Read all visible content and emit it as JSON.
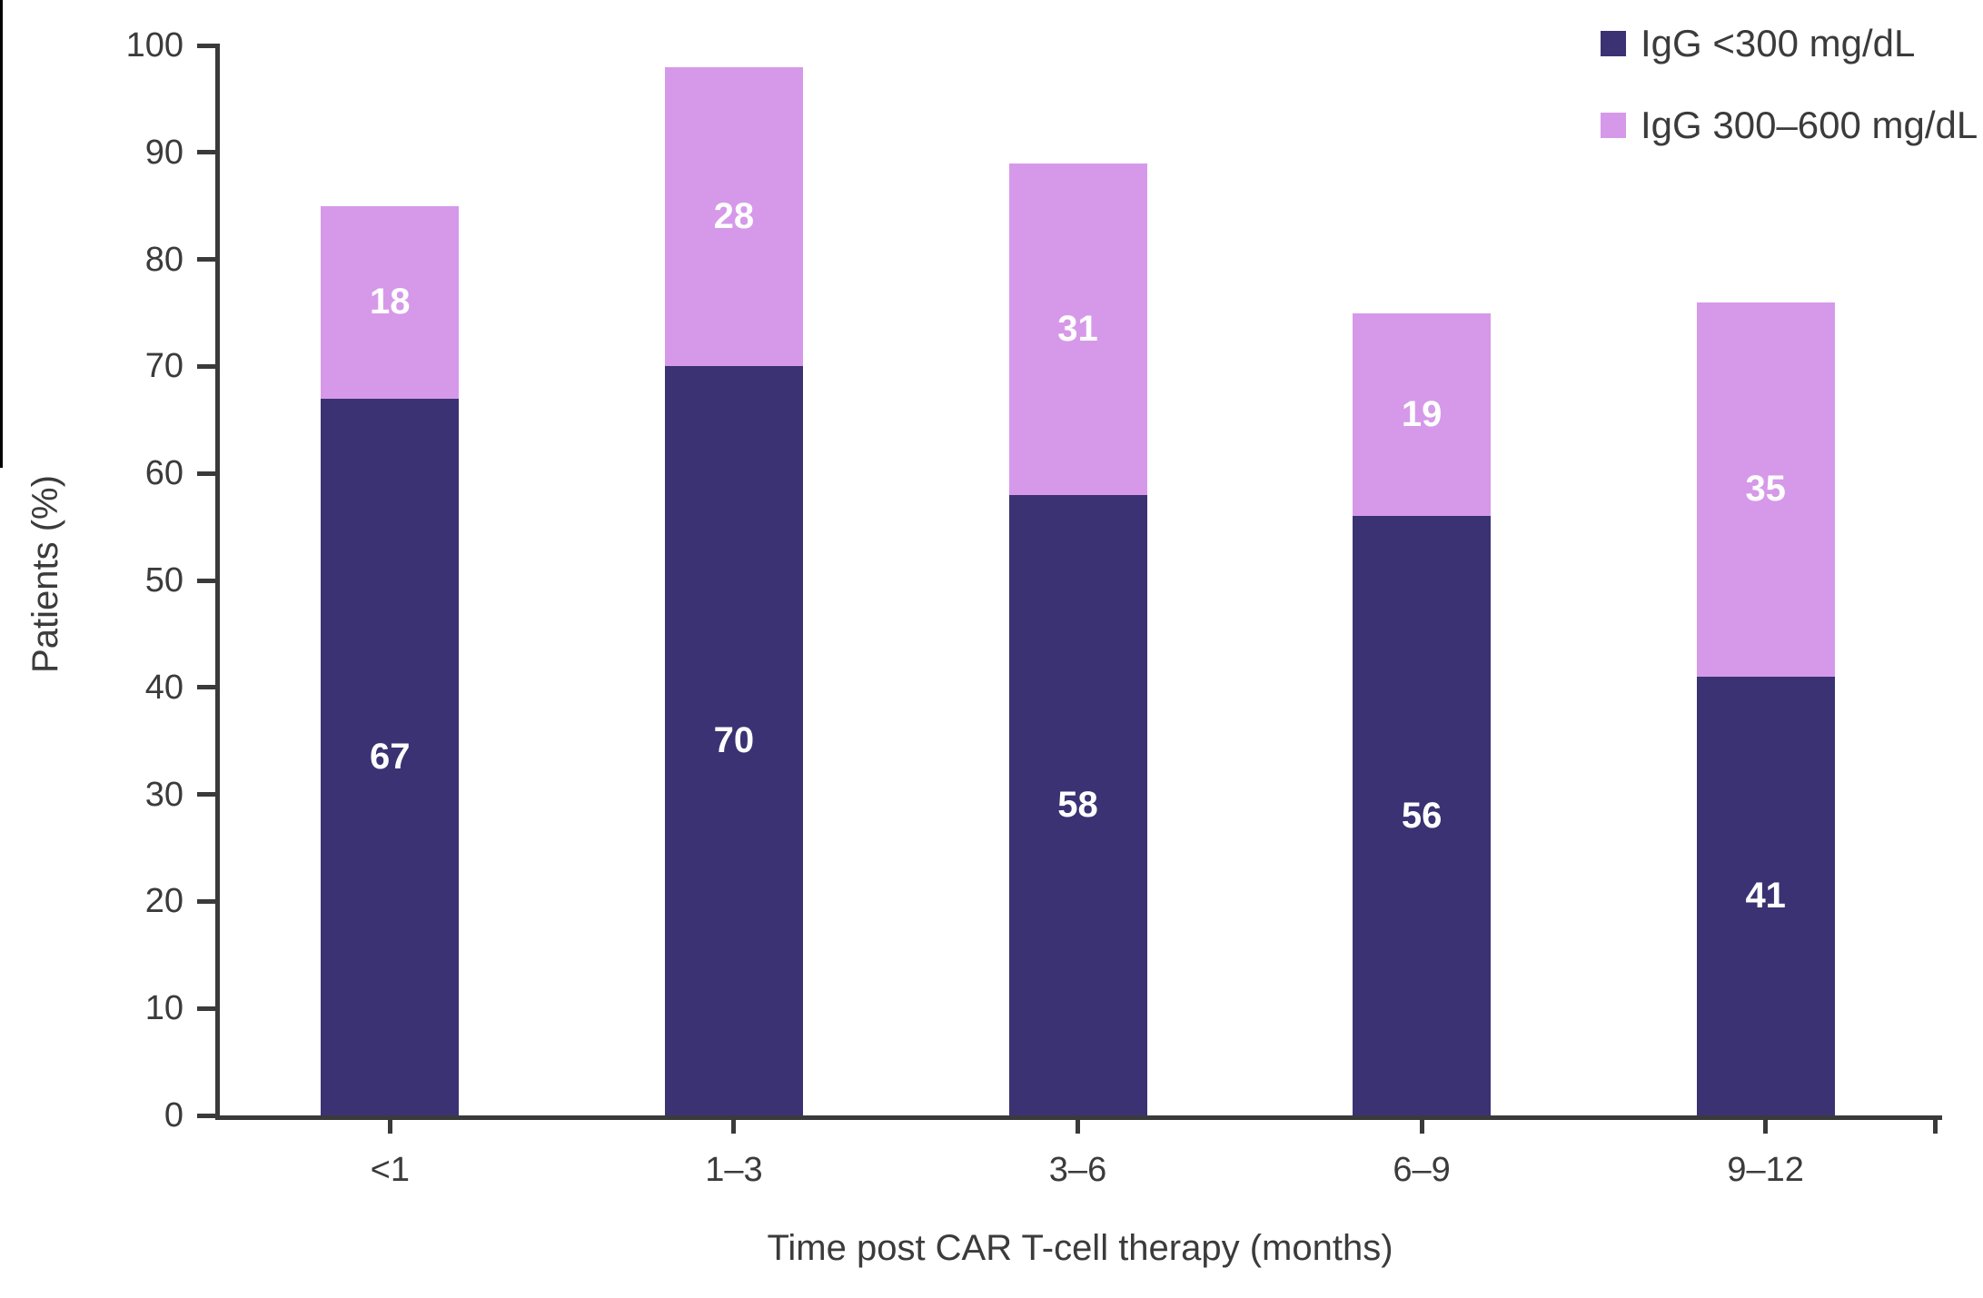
{
  "page": {
    "background": "#FFFFFF",
    "text_color": "#3B3B3B",
    "axis_color": "#3A3A3A"
  },
  "axes": {
    "x_title": "Time post CAR T-cell therapy (months)",
    "y_title": "Patients (%)"
  },
  "legend": {
    "position": "top-right",
    "items": [
      {
        "label": "IgG <300 mg/dL",
        "color": "#3A3272"
      },
      {
        "label": "IgG 300–600 mg/dL",
        "color": "#D699E9"
      }
    ]
  },
  "chart_data": {
    "type": "bar",
    "subtype": "stacked-vertical",
    "categories": [
      "<1",
      "1–3",
      "3–6",
      "6–9",
      "9–12"
    ],
    "series": [
      {
        "name": "IgG <300 mg/dL",
        "color": "#3A3272",
        "values": [
          67,
          70,
          58,
          56,
          41
        ]
      },
      {
        "name": "IgG 300–600 mg/dL",
        "color": "#D699E9",
        "values": [
          18,
          28,
          31,
          19,
          35
        ]
      }
    ],
    "stack_totals": [
      85,
      98,
      89,
      75,
      76
    ],
    "bar_value_label_color": "#FFFFFF",
    "title": "",
    "xlabel": "Time post CAR T-cell therapy (months)",
    "ylabel": "Patients (%)",
    "ylim": [
      0,
      100
    ],
    "yticks": [
      0,
      10,
      20,
      30,
      40,
      50,
      60,
      70,
      80,
      90,
      100
    ],
    "grid": false,
    "legend_position": "top-right"
  }
}
